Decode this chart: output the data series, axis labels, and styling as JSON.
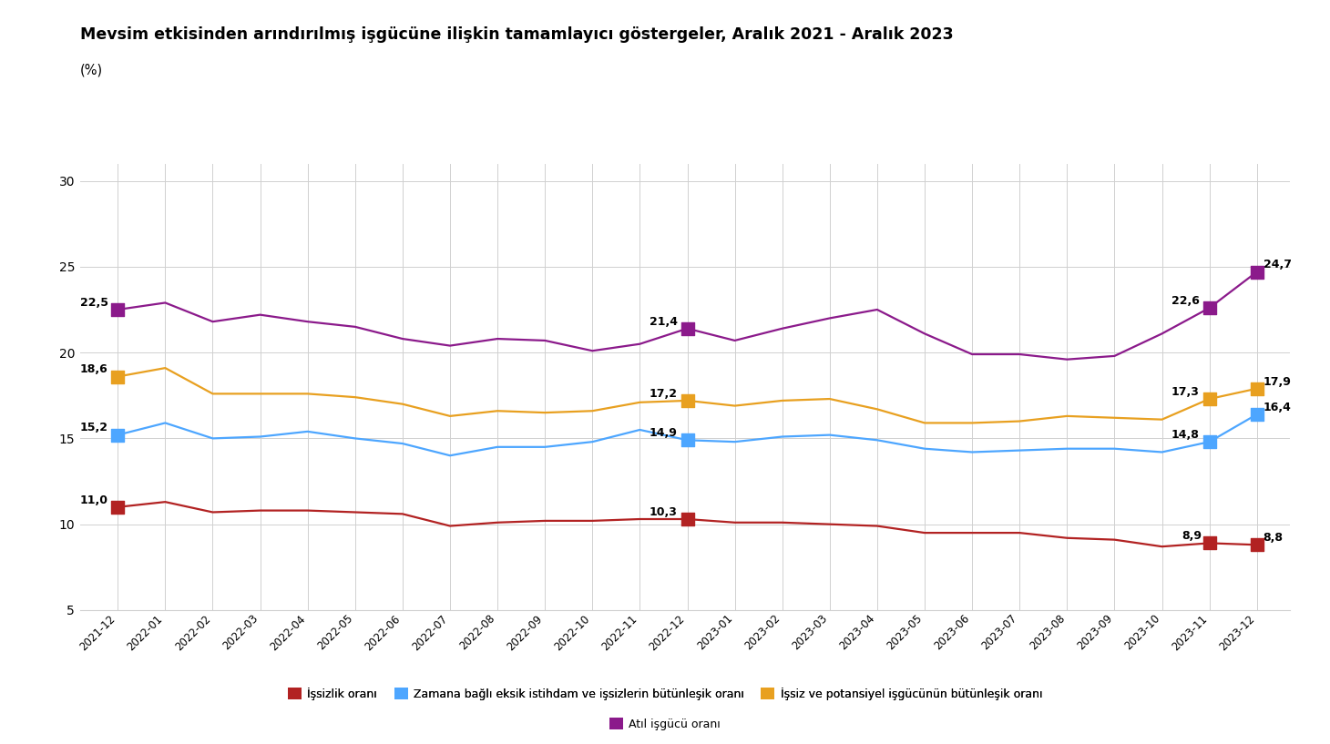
{
  "title": "Mevsim etkisinden arındırılmış işgücüne ilişkin tamamlayıcı göstergeler, Aralık 2021 - Aralık 2023",
  "subtitle": "(%)",
  "x_labels": [
    "2021-12",
    "2022-01",
    "2022-02",
    "2022-03",
    "2022-04",
    "2022-05",
    "2022-06",
    "2022-07",
    "2022-08",
    "2022-09",
    "2022-10",
    "2022-11",
    "2022-12",
    "2023-01",
    "2023-02",
    "2023-03",
    "2023-04",
    "2023-05",
    "2023-06",
    "2023-07",
    "2023-08",
    "2023-09",
    "2023-10",
    "2023-11",
    "2023-12"
  ],
  "issizlik": [
    11.0,
    11.3,
    10.7,
    10.8,
    10.8,
    10.7,
    10.6,
    9.9,
    10.1,
    10.2,
    10.2,
    10.3,
    10.3,
    10.1,
    10.1,
    10.0,
    9.9,
    9.5,
    9.5,
    9.5,
    9.2,
    9.1,
    8.7,
    8.9,
    8.8
  ],
  "zamana_bagli": [
    15.2,
    15.9,
    15.0,
    15.1,
    15.4,
    15.0,
    14.7,
    14.0,
    14.5,
    14.5,
    14.8,
    15.5,
    14.9,
    14.8,
    15.1,
    15.2,
    14.9,
    14.4,
    14.2,
    14.3,
    14.4,
    14.4,
    14.2,
    14.8,
    16.4
  ],
  "issiz_potansiyel": [
    18.6,
    19.1,
    17.6,
    17.6,
    17.6,
    17.4,
    17.0,
    16.3,
    16.6,
    16.5,
    16.6,
    17.1,
    17.2,
    16.9,
    17.2,
    17.3,
    16.7,
    15.9,
    15.9,
    16.0,
    16.3,
    16.2,
    16.1,
    17.3,
    17.9
  ],
  "atil_isgucu": [
    22.5,
    22.9,
    21.8,
    22.2,
    21.8,
    21.5,
    20.8,
    20.4,
    20.8,
    20.7,
    20.1,
    20.5,
    21.4,
    20.7,
    21.4,
    22.0,
    22.5,
    21.1,
    19.9,
    19.9,
    19.6,
    19.8,
    21.1,
    22.6,
    24.7
  ],
  "issizlik_color": "#B22222",
  "zamana_bagli_color": "#4DA6FF",
  "issiz_potansiyel_color": "#E8A020",
  "atil_isgucu_color": "#8B1A8B",
  "ylim": [
    5,
    31
  ],
  "yticks": [
    5,
    10,
    15,
    20,
    25,
    30
  ],
  "legend_labels": [
    "İşsizlik oranı",
    "Zamana bağlı eksik istihdam ve işsizlerin bütünleşik oranı",
    "İşsiz ve potansiyel işgücünün bütünleşik oranı",
    "Atıl işgücü oranı"
  ],
  "background_color": "#FFFFFF",
  "grid_color": "#D0D0D0",
  "annot_fs": 9.0,
  "highlight_idx": [
    0,
    12,
    23,
    24
  ]
}
